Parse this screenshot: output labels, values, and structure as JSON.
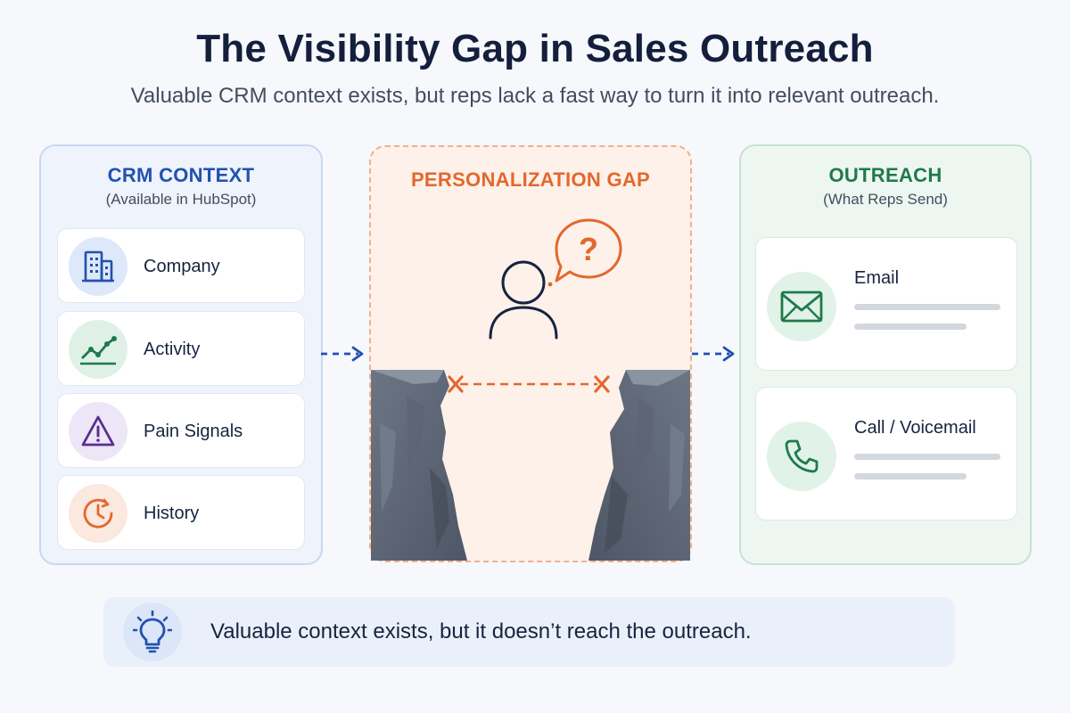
{
  "title": "The Visibility Gap in Sales Outreach",
  "subtitle": "Valuable CRM context exists, but reps lack a fast way to turn it into relevant outreach.",
  "crm_context": {
    "heading": "CRM CONTEXT",
    "subheading": "(Available in HubSpot)",
    "items": [
      {
        "label": "Company",
        "icon": "building-icon",
        "color": "#2350b0"
      },
      {
        "label": "Activity",
        "icon": "trend-chart-icon",
        "color": "#1e7a4a"
      },
      {
        "label": "Pain Signals",
        "icon": "warning-triangle-icon",
        "color": "#5a2f8f"
      },
      {
        "label": "History",
        "icon": "clock-history-icon",
        "color": "#e2682c"
      }
    ]
  },
  "gap": {
    "heading": "PERSONALIZATION GAP",
    "question_mark": "?",
    "icons": [
      "person-icon",
      "question-bubble-icon",
      "cliff-left-icon",
      "cliff-right-icon",
      "x-mark-icon"
    ]
  },
  "outreach": {
    "heading": "OUTREACH",
    "subheading": "(What Reps Send)",
    "items": [
      {
        "label": "Email",
        "icon": "envelope-icon"
      },
      {
        "label": "Call / Voicemail",
        "icon": "phone-icon"
      }
    ]
  },
  "callout": {
    "text": "Valuable context exists, but it doesn’t reach the outreach.",
    "icon": "lightbulb-icon"
  },
  "colors": {
    "primary_blue": "#2350b0",
    "accent_orange": "#e2682c",
    "accent_green": "#1e7a4a"
  }
}
